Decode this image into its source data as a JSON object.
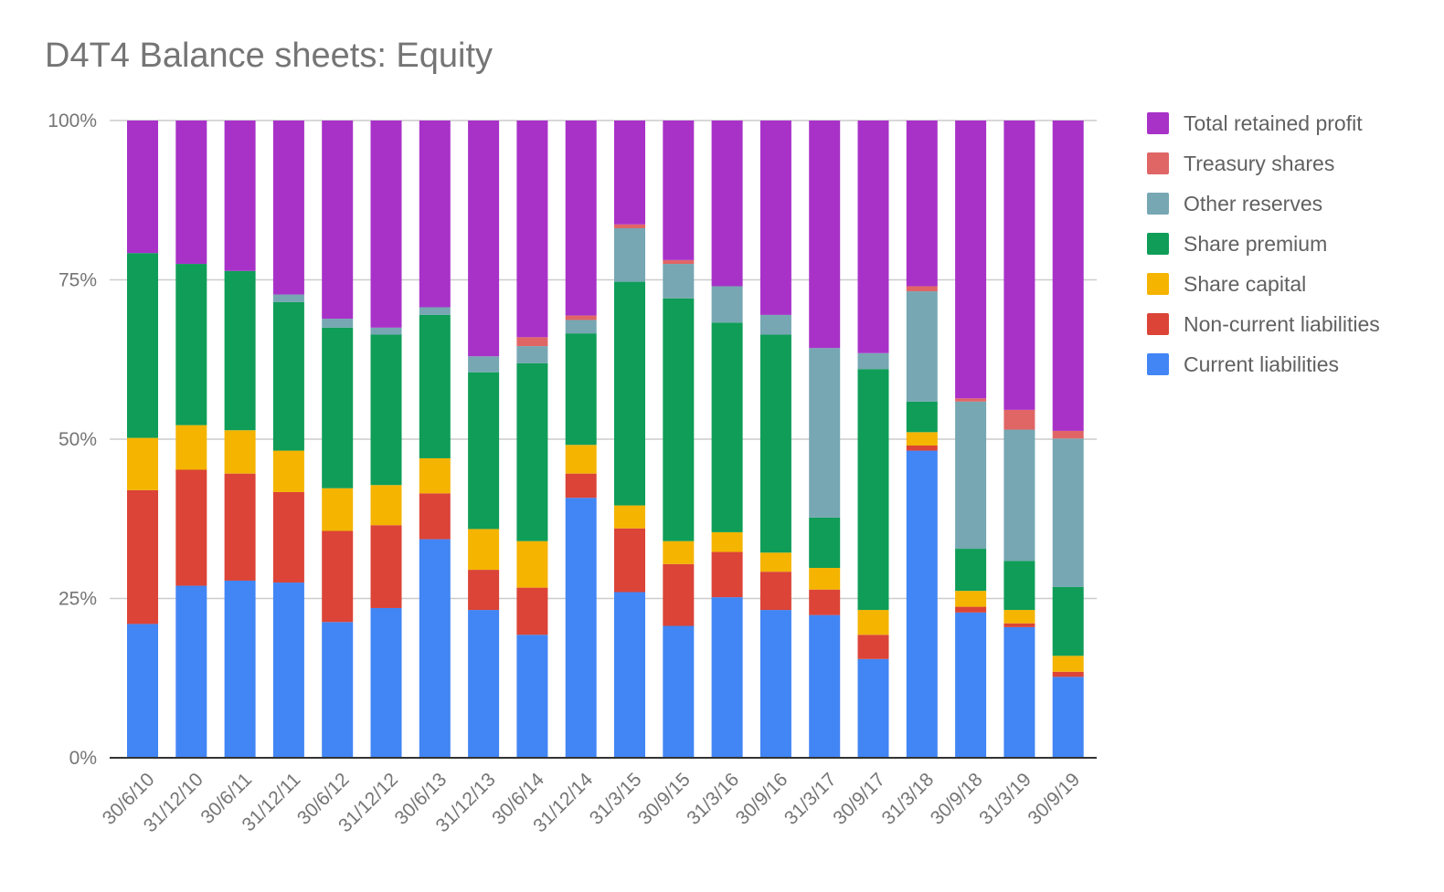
{
  "chart_data": {
    "type": "bar",
    "stacked": true,
    "percent": true,
    "title": "D4T4 Balance sheets: Equity",
    "xlabel": "",
    "ylabel": "",
    "ylim": [
      0,
      100
    ],
    "yticks": [
      "0%",
      "25%",
      "50%",
      "75%",
      "100%"
    ],
    "grid": true,
    "legend_position": "right",
    "categories": [
      "30/6/10",
      "31/12/10",
      "30/6/11",
      "31/12/11",
      "30/6/12",
      "31/12/12",
      "30/6/13",
      "31/12/13",
      "30/6/14",
      "31/12/14",
      "31/3/15",
      "30/9/15",
      "31/3/16",
      "30/9/16",
      "31/3/17",
      "30/9/17",
      "31/3/18",
      "30/9/18",
      "31/3/19",
      "30/9/19"
    ],
    "series": [
      {
        "name": "Current liabilities",
        "color": "#4285f4",
        "values": [
          21.0,
          27.0,
          27.8,
          27.5,
          21.3,
          23.5,
          34.3,
          23.2,
          19.3,
          40.8,
          26.0,
          20.7,
          25.2,
          23.2,
          22.4,
          15.5,
          48.2,
          22.8,
          20.5,
          12.7
        ]
      },
      {
        "name": "Non-current liabilities",
        "color": "#db4437",
        "values": [
          21.0,
          18.2,
          16.8,
          14.2,
          14.3,
          13.0,
          7.2,
          6.3,
          7.4,
          3.8,
          10.0,
          9.7,
          7.1,
          6.0,
          4.0,
          3.8,
          0.8,
          0.9,
          0.6,
          0.8
        ]
      },
      {
        "name": "Share capital",
        "color": "#f4b400",
        "values": [
          8.2,
          7.0,
          6.8,
          6.5,
          6.7,
          6.3,
          5.5,
          6.4,
          7.3,
          4.5,
          3.6,
          3.6,
          3.1,
          3.0,
          3.4,
          3.9,
          2.1,
          2.5,
          2.1,
          2.5
        ]
      },
      {
        "name": "Share premium",
        "color": "#0f9d58",
        "values": [
          29.0,
          25.3,
          25.0,
          23.3,
          25.2,
          23.6,
          22.5,
          24.6,
          27.9,
          17.5,
          35.1,
          38.1,
          32.9,
          34.2,
          7.9,
          37.8,
          4.8,
          6.6,
          7.7,
          10.8
        ]
      },
      {
        "name": "Other reserves",
        "color": "#76a7b3",
        "values": [
          0,
          0,
          0,
          1.2,
          1.4,
          1.1,
          1.2,
          2.5,
          2.7,
          2.1,
          8.4,
          5.4,
          5.7,
          3.1,
          26.6,
          2.5,
          17.3,
          23.1,
          20.6,
          23.3
        ]
      },
      {
        "name": "Treasury shares",
        "color": "#e06666",
        "values": [
          0,
          0,
          0,
          0,
          0,
          0,
          0,
          0,
          1.4,
          0.7,
          0.6,
          0.6,
          0,
          0,
          0,
          0,
          0.8,
          0.5,
          3.1,
          1.2
        ]
      },
      {
        "name": "Total retained profit",
        "color": "#a832c8",
        "values": [
          20.8,
          22.5,
          23.6,
          27.3,
          31.1,
          32.5,
          29.3,
          37.0,
          34.0,
          30.6,
          16.3,
          21.9,
          26.0,
          30.5,
          35.7,
          36.5,
          26.0,
          43.6,
          45.4,
          48.7
        ]
      }
    ]
  }
}
